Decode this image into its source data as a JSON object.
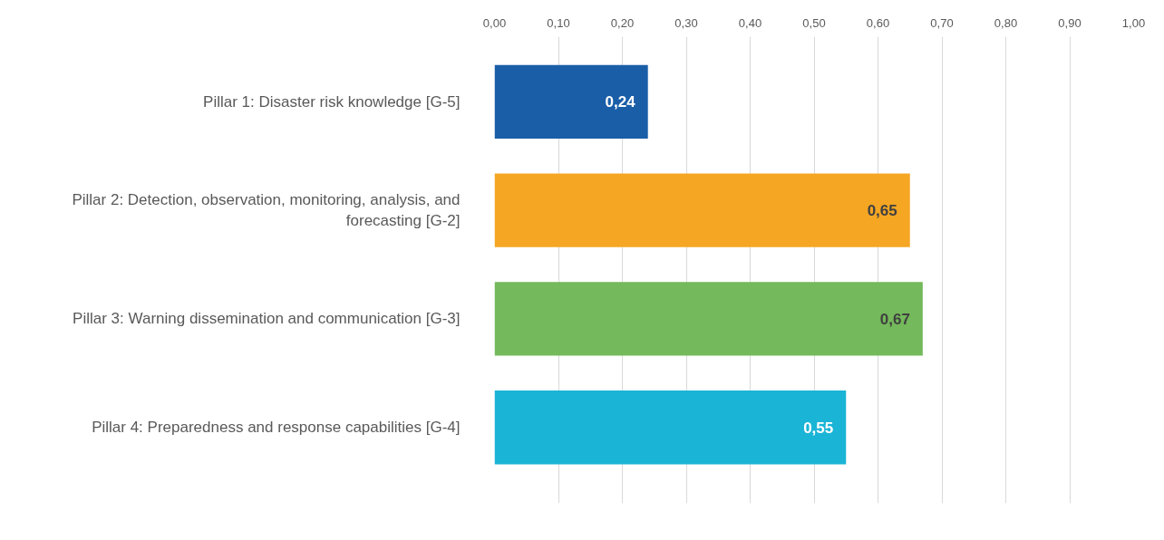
{
  "chart_data": {
    "type": "bar",
    "orientation": "horizontal",
    "categories": [
      "Pillar 1: Disaster risk knowledge [G-5]",
      "Pillar 2: Detection, observation, monitoring, analysis, and forecasting [G-2]",
      "Pillar 3: Warning dissemination and communication [G-3]",
      "Pillar 4: Preparedness and response capabilities [G-4]"
    ],
    "values": [
      0.24,
      0.65,
      0.67,
      0.55
    ],
    "colors": [
      "#1a5ea8",
      "#f5a623",
      "#74b95b",
      "#1ab4d6"
    ],
    "value_labels": [
      "0,24",
      "0,65",
      "0,67",
      "0,55"
    ],
    "xlim": [
      0,
      1
    ],
    "xticks": [
      {
        "value": 0,
        "label": "0,00"
      },
      {
        "value": 0.1,
        "label": "0,10"
      },
      {
        "value": 0.2,
        "label": "0,20"
      },
      {
        "value": 0.3,
        "label": "0,30"
      },
      {
        "value": 0.4,
        "label": "0,40"
      },
      {
        "value": 0.5,
        "label": "0,50"
      },
      {
        "value": 0.6,
        "label": "0,60"
      },
      {
        "value": 0.7,
        "label": "0,70"
      },
      {
        "value": 0.8,
        "label": "0,80"
      },
      {
        "value": 0.9,
        "label": "0,90"
      },
      {
        "value": 1,
        "label": "1,00"
      }
    ],
    "grid": "x"
  }
}
